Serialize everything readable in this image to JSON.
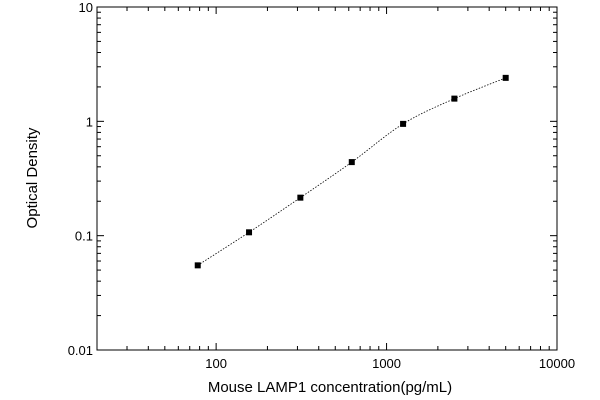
{
  "chart_data": {
    "type": "scatter",
    "title": "",
    "xlabel": "Mouse LAMP1 concentration(pg/mL)",
    "ylabel": "Optical Density",
    "x_scale": "log",
    "y_scale": "log",
    "xlim": [
      20,
      10000
    ],
    "ylim": [
      0.01,
      10
    ],
    "x_ticks": [
      100,
      1000,
      10000
    ],
    "x_tick_labels": [
      "100",
      "1000",
      "10000"
    ],
    "y_ticks": [
      0.01,
      0.1,
      1,
      10
    ],
    "y_tick_labels": [
      "0.01",
      "0.1",
      "1",
      "10"
    ],
    "grid": false,
    "legend": "none",
    "series": [
      {
        "marker": "square",
        "fit_line": "dotted",
        "x": [
          78,
          156,
          312,
          625,
          1250,
          2500,
          5000
        ],
        "y": [
          0.055,
          0.107,
          0.215,
          0.44,
          0.95,
          1.58,
          2.4
        ]
      }
    ],
    "colors": {
      "marker": "#000000",
      "line": "#000000",
      "axis": "#000000"
    }
  }
}
